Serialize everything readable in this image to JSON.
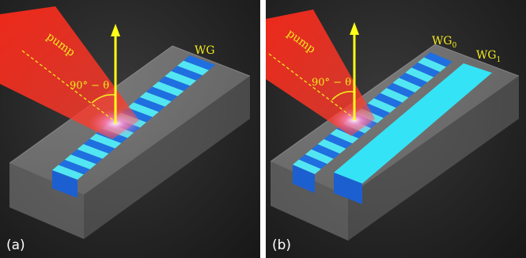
{
  "panels": [
    {
      "label": "(a)",
      "pump_label": "pump",
      "angle_label": "90° − θ",
      "waveguides": [
        {
          "label": "WG",
          "subscript": ""
        }
      ]
    },
    {
      "label": "(b)",
      "pump_label": "pump",
      "angle_label": "90° − θ",
      "waveguides": [
        {
          "label": "WG",
          "subscript": "0"
        },
        {
          "label": "WG",
          "subscript": "1"
        }
      ]
    }
  ],
  "colors": {
    "pump_beam": "#ff2a1a",
    "emission_arrow": "#ffff1a",
    "grating_dark": "#1f6fe0",
    "grating_light": "#52e6f2",
    "waveguide_uniform": "#35e3f6",
    "label_text": "#f4ea1e",
    "slab": "#9a9a9a"
  }
}
